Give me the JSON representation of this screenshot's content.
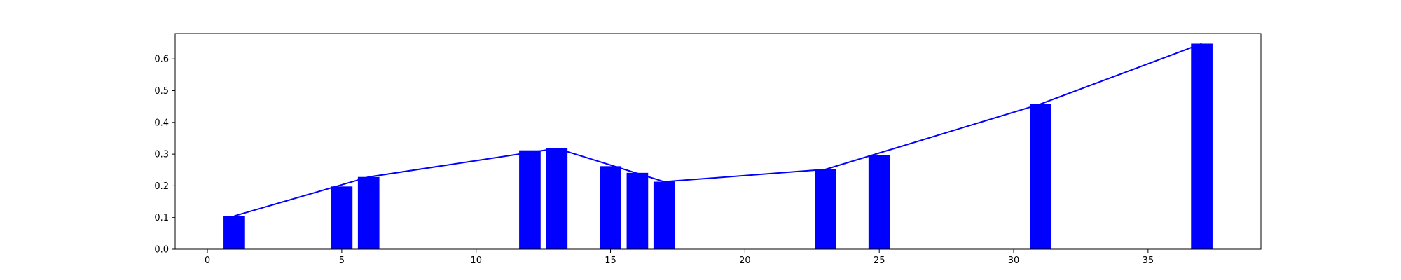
{
  "chart_data": {
    "type": "bar",
    "title": "",
    "xlabel": "",
    "ylabel": "",
    "xlim": [
      -1.2,
      39.2
    ],
    "ylim": [
      0,
      0.68
    ],
    "grid": false,
    "bar_color": "#0000ff",
    "line_color": "#0000ff",
    "x_ticks": [
      0,
      5,
      10,
      15,
      20,
      25,
      30,
      35
    ],
    "y_ticks": [
      0.0,
      0.1,
      0.2,
      0.3,
      0.4,
      0.5,
      0.6
    ],
    "x_tick_labels": [
      "0",
      "5",
      "10",
      "15",
      "20",
      "25",
      "30",
      "35"
    ],
    "y_tick_labels": [
      "0.0",
      "0.1",
      "0.2",
      "0.3",
      "0.4",
      "0.5",
      "0.6"
    ],
    "bars": [
      {
        "x": 1,
        "value": 0.105
      },
      {
        "x": 5,
        "value": 0.198
      },
      {
        "x": 6,
        "value": 0.228
      },
      {
        "x": 12,
        "value": 0.312
      },
      {
        "x": 13,
        "value": 0.318
      },
      {
        "x": 15,
        "value": 0.262
      },
      {
        "x": 16,
        "value": 0.241
      },
      {
        "x": 17,
        "value": 0.213
      },
      {
        "x": 23,
        "value": 0.252
      },
      {
        "x": 25,
        "value": 0.297
      },
      {
        "x": 31,
        "value": 0.458
      },
      {
        "x": 37,
        "value": 0.648
      }
    ],
    "bar_width": 0.8,
    "line": {
      "x": [
        1,
        6,
        13,
        17,
        23,
        31,
        37
      ],
      "y": [
        0.105,
        0.228,
        0.318,
        0.213,
        0.252,
        0.458,
        0.648
      ]
    }
  }
}
